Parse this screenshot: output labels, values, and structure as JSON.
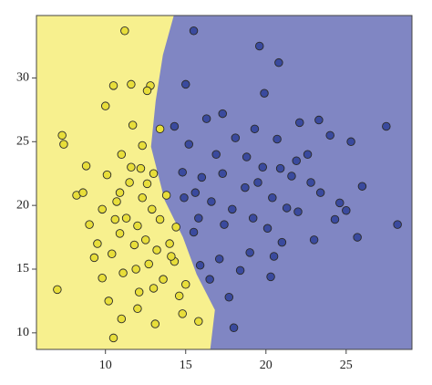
{
  "chart_data": {
    "type": "scatter",
    "xlim": [
      5.7,
      29.1
    ],
    "ylim": [
      8.7,
      34.9
    ],
    "xticks": [
      10,
      15,
      20,
      25
    ],
    "yticks": [
      10,
      15,
      20,
      25,
      30
    ],
    "regions": {
      "left_color": "#f7f08e",
      "right_color": "#8086c3",
      "boundary": {
        "x": [
          14.26,
          13.58,
          13.13,
          12.84,
          13.69,
          14.83,
          15.68,
          16.82,
          16.53
        ],
        "y": [
          34.9,
          31.8,
          28.2,
          24.6,
          20.4,
          17.5,
          14.6,
          11.8,
          8.7
        ]
      }
    },
    "series": [
      {
        "color": "#e8de3a",
        "x": [
          11.2,
          7.0,
          7.3,
          7.4,
          10.0,
          10.5,
          11.6,
          12.8,
          12.6,
          11.0,
          10.5,
          15.8,
          8.2,
          8.6,
          9.0,
          9.3,
          9.8,
          10.1,
          10.4,
          10.7,
          10.9,
          11.1,
          11.3,
          11.5,
          11.8,
          12.0,
          12.1,
          12.3,
          12.5,
          12.7,
          12.9,
          13.0,
          13.2,
          13.4,
          13.6,
          13.8,
          14.0,
          14.3,
          14.6,
          15.0,
          11.0,
          11.6,
          12.3,
          10.2,
          9.8,
          12.0,
          13.1,
          14.8,
          11.7,
          13.4,
          14.1,
          12.6,
          10.6,
          9.5,
          13.0,
          11.9,
          14.4,
          8.8,
          12.2,
          10.9
        ],
        "values": [
          33.7,
          13.4,
          25.5,
          24.8,
          27.8,
          29.4,
          29.5,
          29.4,
          29.0,
          11.1,
          9.6,
          10.9,
          20.8,
          21.0,
          18.5,
          15.9,
          19.7,
          22.4,
          16.2,
          20.3,
          17.8,
          14.7,
          19.0,
          21.8,
          16.9,
          18.4,
          13.2,
          20.6,
          17.3,
          15.4,
          19.7,
          22.5,
          16.5,
          18.9,
          14.2,
          20.8,
          17.0,
          15.6,
          12.9,
          13.8,
          24.0,
          23.0,
          24.7,
          12.5,
          14.3,
          11.9,
          10.7,
          11.5,
          26.3,
          26.0,
          16.0,
          21.7,
          18.9,
          17.0,
          13.5,
          15.0,
          18.3,
          23.1,
          22.9,
          21.0
        ]
      },
      {
        "color": "#3a4a9e",
        "x": [
          15.5,
          19.6,
          20.8,
          19.9,
          23.3,
          27.5,
          25.3,
          25.7,
          28.2,
          18.0,
          20.3,
          17.7,
          14.3,
          15.0,
          16.9,
          17.3,
          18.1,
          18.7,
          19.2,
          19.8,
          20.4,
          21.0,
          21.6,
          22.0,
          22.6,
          23.4,
          24.0,
          24.6,
          25.0,
          26.0,
          23.0,
          22.1,
          20.7,
          19.0,
          17.4,
          16.6,
          16.0,
          15.5,
          15.9,
          17.1,
          18.4,
          19.5,
          20.1,
          21.3,
          16.3,
          17.9,
          15.2,
          14.9,
          15.8,
          18.8,
          21.9,
          22.8,
          24.3,
          20.5,
          16.5,
          17.3,
          14.8,
          19.3,
          20.9,
          15.6
        ],
        "values": [
          33.7,
          32.5,
          31.2,
          28.8,
          26.7,
          26.2,
          25.0,
          17.5,
          18.5,
          10.4,
          14.4,
          12.8,
          26.2,
          29.5,
          24.0,
          27.2,
          25.3,
          21.4,
          19.0,
          23.0,
          20.6,
          17.1,
          22.3,
          19.5,
          24.0,
          21.0,
          25.5,
          20.2,
          19.6,
          21.5,
          17.3,
          26.5,
          25.2,
          16.3,
          18.5,
          20.3,
          22.2,
          17.9,
          15.3,
          15.8,
          14.9,
          21.8,
          18.2,
          19.8,
          26.8,
          19.7,
          24.8,
          20.6,
          19.0,
          23.8,
          23.5,
          21.8,
          18.9,
          16.0,
          14.2,
          22.5,
          22.6,
          26.0,
          22.9,
          21.0
        ]
      }
    ]
  }
}
